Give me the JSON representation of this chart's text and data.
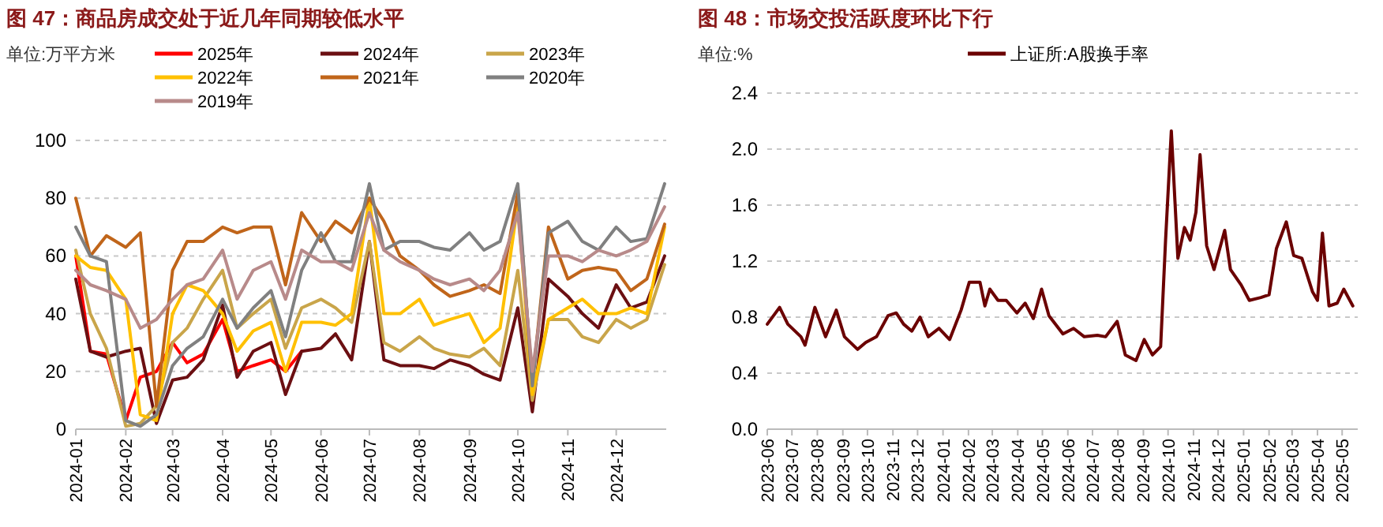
{
  "chart_data": [
    {
      "type": "line",
      "title": "图 47：商品房成交处于近几年同期较低水平",
      "ylabel": "单位:万平方米",
      "legend": "top",
      "grid": "y",
      "x": [
        "2024-01-01",
        "2024-01-10",
        "2024-01-20",
        "2024-02-01",
        "2024-02-10",
        "2024-02-20",
        "2024-03-01",
        "2024-03-10",
        "2024-03-20",
        "2024-04-01",
        "2024-04-10",
        "2024-04-20",
        "2024-05-01",
        "2024-05-10",
        "2024-05-20",
        "2024-06-01",
        "2024-06-10",
        "2024-06-20",
        "2024-07-01",
        "2024-07-10",
        "2024-07-20",
        "2024-08-01",
        "2024-08-10",
        "2024-08-20",
        "2024-09-01",
        "2024-09-10",
        "2024-09-20",
        "2024-10-01",
        "2024-10-10",
        "2024-10-20",
        "2024-11-01",
        "2024-11-10",
        "2024-11-20",
        "2024-12-01",
        "2024-12-10",
        "2024-12-20",
        "2024-12-31"
      ],
      "xlim": [
        "2024-01-01",
        "2025-01-01"
      ],
      "xticks": [
        "2024-01",
        "2024-02",
        "2024-03",
        "2024-04",
        "2024-05",
        "2024-06",
        "2024-07",
        "2024-08",
        "2024-09",
        "2024-10",
        "2024-11",
        "2024-12"
      ],
      "ylim": [
        0,
        100
      ],
      "yticks": [
        0,
        20,
        40,
        60,
        80,
        100
      ],
      "series": [
        {
          "name": "2025年",
          "color": "#ff0000",
          "values": [
            60,
            27,
            26,
            3,
            18,
            20,
            30,
            23,
            26,
            38,
            20,
            22,
            24,
            20,
            27,
            null,
            null,
            null,
            null,
            null,
            null,
            null,
            null,
            null,
            null,
            null,
            null,
            null,
            null,
            null,
            null,
            null,
            null,
            null,
            null,
            null,
            null
          ]
        },
        {
          "name": "2024年",
          "color": "#6b0f12",
          "values": [
            52,
            27,
            25,
            27,
            28,
            2,
            17,
            18,
            24,
            43,
            18,
            27,
            30,
            12,
            27,
            28,
            33,
            24,
            65,
            24,
            22,
            22,
            21,
            24,
            22,
            19,
            17,
            42,
            6,
            52,
            46,
            40,
            35,
            50,
            42,
            44,
            60
          ]
        },
        {
          "name": "2023年",
          "color": "#c9a54a",
          "values": [
            62,
            40,
            28,
            1,
            2,
            8,
            30,
            35,
            45,
            55,
            35,
            40,
            45,
            28,
            42,
            45,
            42,
            37,
            65,
            30,
            27,
            32,
            28,
            26,
            25,
            28,
            22,
            55,
            10,
            38,
            38,
            32,
            30,
            38,
            35,
            38,
            57
          ]
        },
        {
          "name": "2022年",
          "color": "#ffc000",
          "values": [
            60,
            56,
            55,
            45,
            5,
            3,
            40,
            50,
            48,
            40,
            27,
            34,
            37,
            20,
            37,
            37,
            36,
            40,
            80,
            40,
            40,
            45,
            36,
            38,
            40,
            30,
            35,
            78,
            12,
            38,
            42,
            45,
            40,
            40,
            42,
            40,
            70
          ]
        },
        {
          "name": "2021年",
          "color": "#c0651a",
          "values": [
            80,
            60,
            67,
            63,
            68,
            8,
            55,
            65,
            65,
            70,
            68,
            70,
            70,
            50,
            75,
            65,
            72,
            68,
            80,
            72,
            60,
            55,
            50,
            46,
            48,
            50,
            47,
            82,
            16,
            70,
            52,
            55,
            56,
            55,
            48,
            52,
            71
          ]
        },
        {
          "name": "2020年",
          "color": "#808080",
          "values": [
            70,
            60,
            58,
            3,
            1,
            5,
            22,
            28,
            32,
            45,
            35,
            42,
            48,
            32,
            55,
            68,
            58,
            58,
            85,
            62,
            65,
            65,
            63,
            62,
            68,
            62,
            65,
            85,
            15,
            68,
            72,
            65,
            62,
            70,
            65,
            66,
            85
          ]
        },
        {
          "name": "2019年",
          "color": "#b88a8a",
          "values": [
            55,
            50,
            48,
            45,
            35,
            38,
            45,
            50,
            52,
            62,
            45,
            55,
            58,
            45,
            62,
            58,
            58,
            55,
            75,
            62,
            58,
            55,
            52,
            50,
            52,
            48,
            55,
            75,
            20,
            60,
            60,
            58,
            62,
            60,
            62,
            65,
            77
          ]
        }
      ]
    },
    {
      "type": "line",
      "title": "图 48：市场交投活跃度环比下行",
      "ylabel": "单位:%",
      "legend": "top",
      "grid": "y",
      "x": [
        "2023-06-01",
        "2023-06-16",
        "2023-06-26",
        "2023-07-12",
        "2023-07-17",
        "2023-07-29",
        "2023-08-11",
        "2023-08-24",
        "2023-09-03",
        "2023-09-19",
        "2023-09-29",
        "2023-10-12",
        "2023-10-26",
        "2023-11-05",
        "2023-11-14",
        "2023-11-24",
        "2023-12-04",
        "2023-12-14",
        "2023-12-27",
        "2024-01-09",
        "2024-01-23",
        "2024-02-02",
        "2024-02-15",
        "2024-02-21",
        "2024-02-27",
        "2024-03-08",
        "2024-03-18",
        "2024-03-31",
        "2024-04-10",
        "2024-04-20",
        "2024-04-30",
        "2024-05-09",
        "2024-05-26",
        "2024-06-08",
        "2024-06-21",
        "2024-07-07",
        "2024-07-17",
        "2024-07-31",
        "2024-08-10",
        "2024-08-23",
        "2024-09-02",
        "2024-09-12",
        "2024-09-22",
        "2024-09-28",
        "2024-10-05",
        "2024-10-13",
        "2024-10-21",
        "2024-10-28",
        "2024-11-04",
        "2024-11-09",
        "2024-11-17",
        "2024-11-26",
        "2024-12-09",
        "2024-12-16",
        "2024-12-29",
        "2025-01-08",
        "2025-01-22",
        "2025-02-01",
        "2025-02-10",
        "2025-02-22",
        "2025-03-03",
        "2025-03-13",
        "2025-03-26",
        "2025-04-01",
        "2025-04-07",
        "2025-04-15",
        "2025-04-25",
        "2025-05-03",
        "2025-05-14"
      ],
      "xlim": [
        "2023-06-01",
        "2025-05-20"
      ],
      "xticks": [
        "2023-06",
        "2023-07",
        "2023-08",
        "2023-09",
        "2023-10",
        "2023-11",
        "2023-12",
        "2024-01",
        "2024-02",
        "2024-03",
        "2024-04",
        "2024-05",
        "2024-06",
        "2024-07",
        "2024-08",
        "2024-09",
        "2024-10",
        "2024-11",
        "2024-12",
        "2025-01",
        "2025-02",
        "2025-03",
        "2025-04",
        "2025-05"
      ],
      "ylim": [
        0,
        2.4
      ],
      "yticks": [
        {
          "value": 0,
          "label": "0.0"
        },
        0.4,
        0.8,
        1.2,
        1.6,
        {
          "value": 2,
          "label": "2.0"
        },
        2.4
      ],
      "series": [
        {
          "name": "上证所:A股换手率",
          "color": "#6b0000",
          "values": [
            0.75,
            0.87,
            0.75,
            0.66,
            0.6,
            0.87,
            0.66,
            0.85,
            0.66,
            0.57,
            0.62,
            0.66,
            0.81,
            0.83,
            0.75,
            0.7,
            0.8,
            0.66,
            0.72,
            0.64,
            0.85,
            1.05,
            1.05,
            0.88,
            1.0,
            0.92,
            0.92,
            0.83,
            0.9,
            0.79,
            1.0,
            0.81,
            0.68,
            0.72,
            0.66,
            0.67,
            0.66,
            0.77,
            0.53,
            0.49,
            0.64,
            0.53,
            0.59,
            1.35,
            2.13,
            1.22,
            1.44,
            1.35,
            1.55,
            1.96,
            1.31,
            1.14,
            1.42,
            1.14,
            1.03,
            0.92,
            0.94,
            0.96,
            1.29,
            1.48,
            1.24,
            1.22,
            0.98,
            0.92,
            1.4,
            0.88,
            0.9,
            1.0,
            0.88
          ]
        }
      ]
    }
  ]
}
